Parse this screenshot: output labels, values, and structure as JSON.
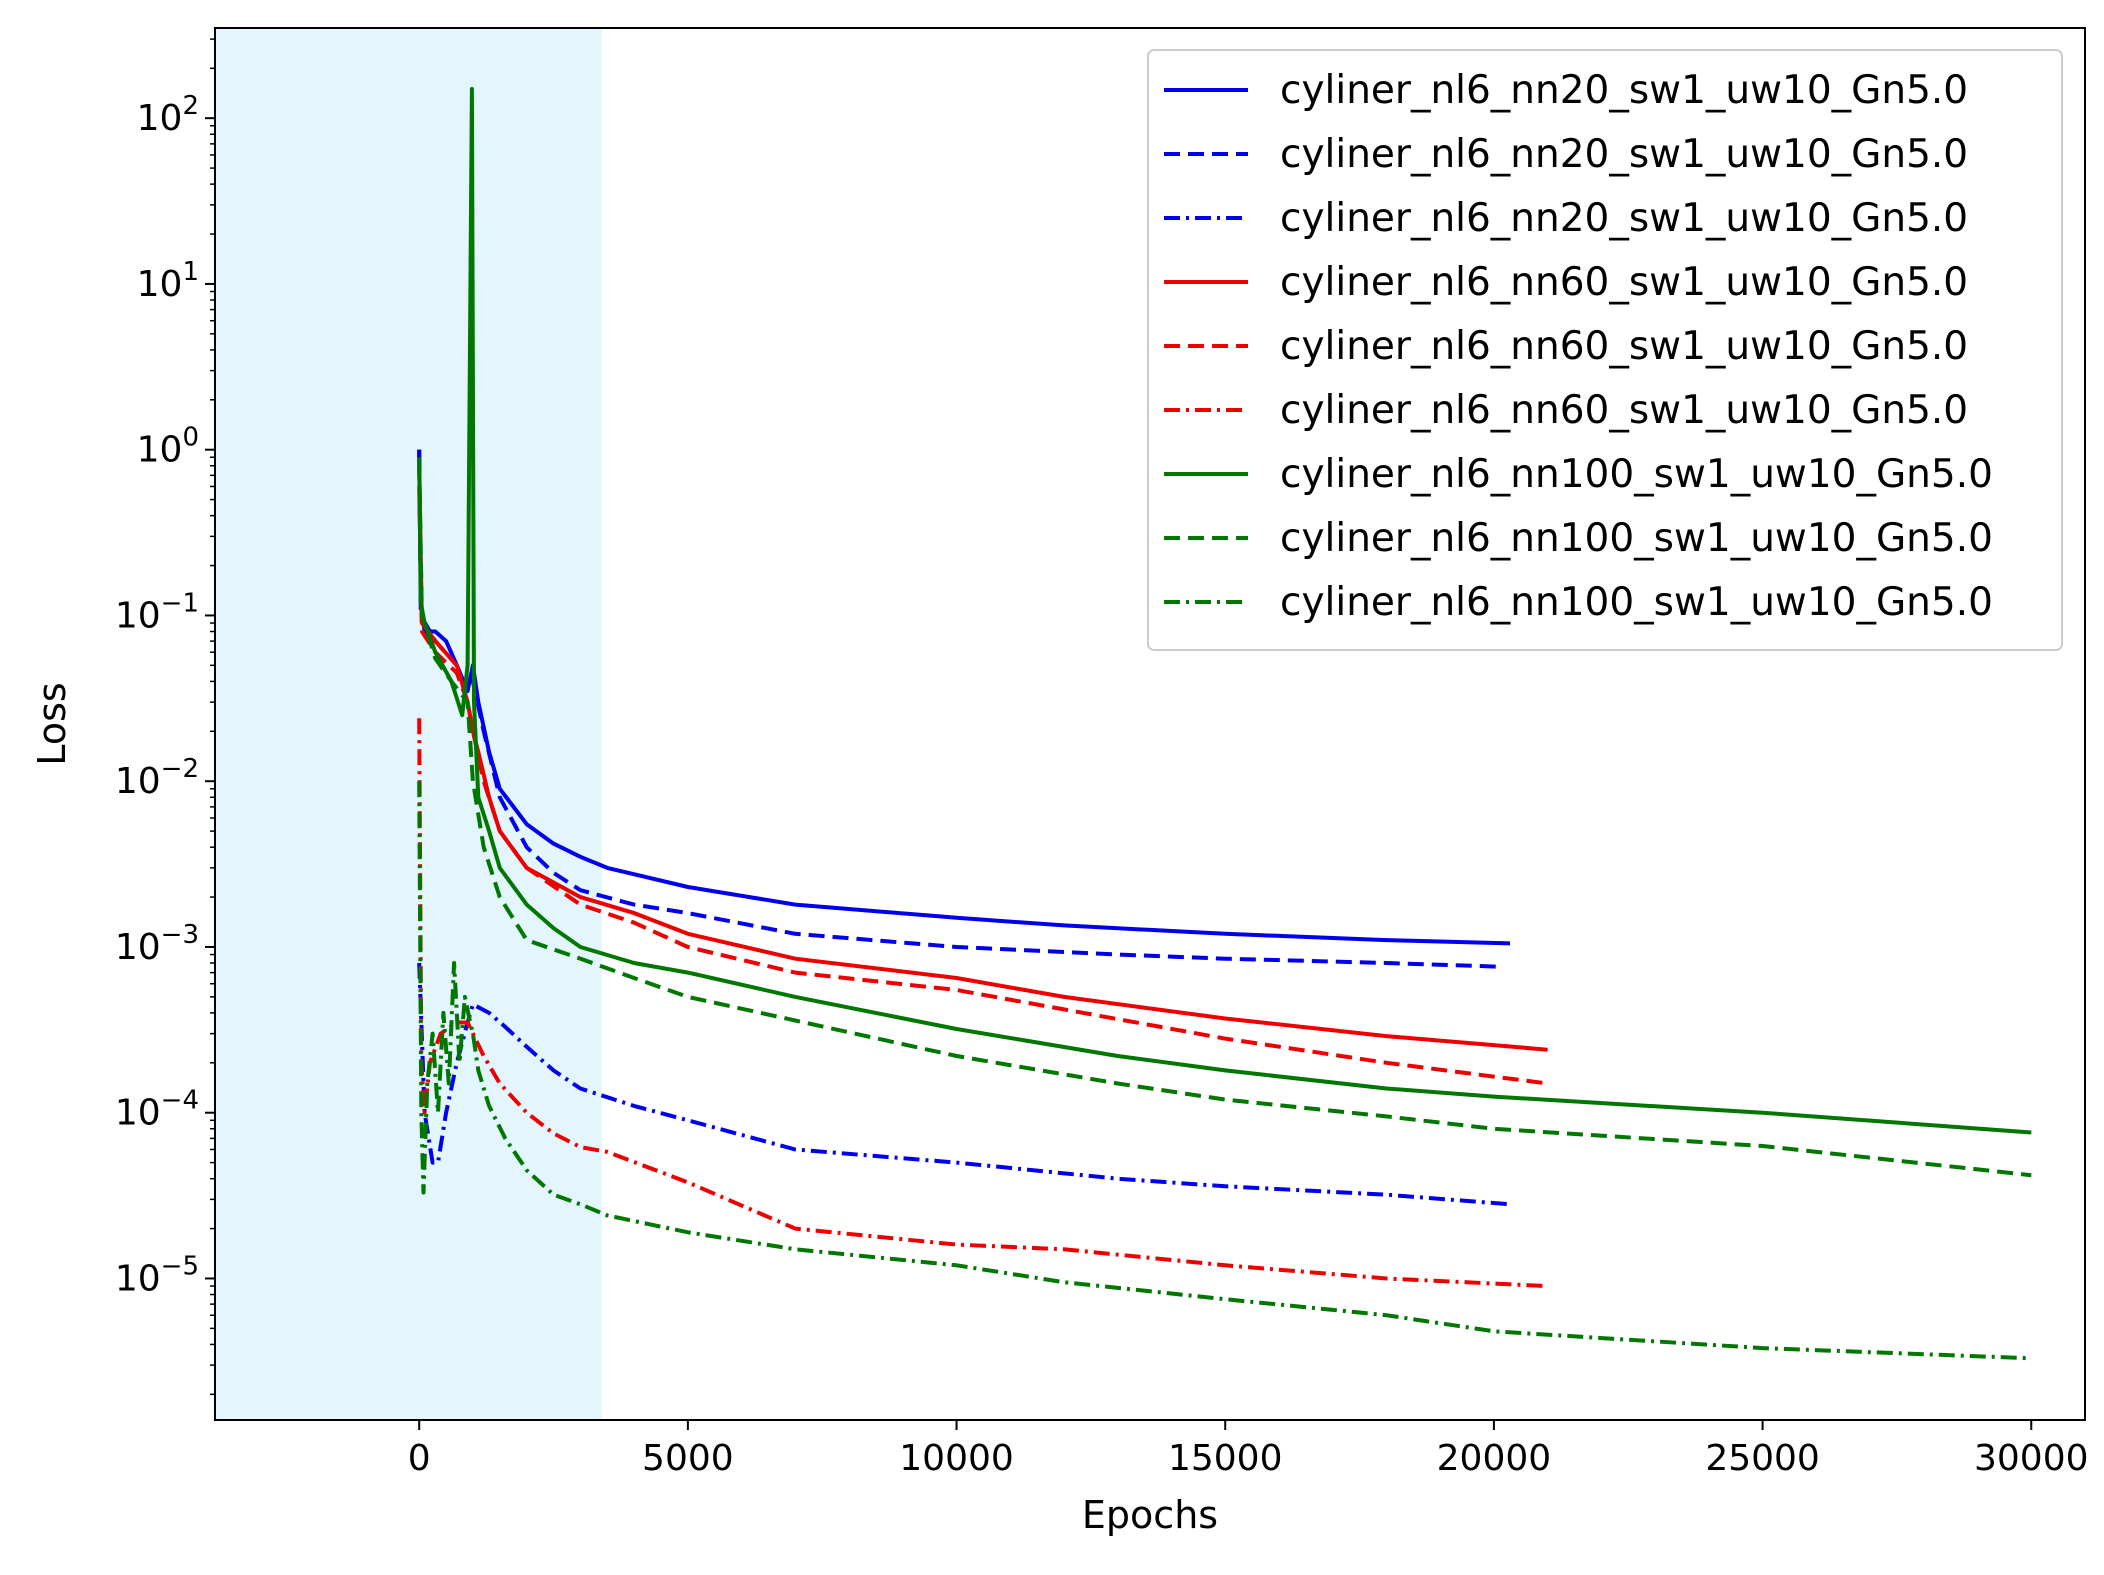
{
  "chart_data": {
    "type": "line",
    "title": "",
    "xlabel": "Epochs",
    "ylabel": "Loss",
    "xlim": [
      -3800,
      31000
    ],
    "ylim": [
      1.4e-06,
      350
    ],
    "yscale": "log",
    "xticks": [
      0,
      5000,
      10000,
      15000,
      20000,
      25000,
      30000
    ],
    "xtick_labels": [
      "0",
      "5000",
      "10000",
      "15000",
      "20000",
      "25000",
      "30000"
    ],
    "ytick_labels": [
      {
        "exp": -5,
        "base": "10",
        "sup": "−5"
      },
      {
        "exp": -4,
        "base": "10",
        "sup": "−4"
      },
      {
        "exp": -3,
        "base": "10",
        "sup": "−3"
      },
      {
        "exp": -2,
        "base": "10",
        "sup": "−2"
      },
      {
        "exp": -1,
        "base": "10",
        "sup": "−1"
      },
      {
        "exp": 0,
        "base": "10",
        "sup": "0"
      },
      {
        "exp": 1,
        "base": "10",
        "sup": "1"
      },
      {
        "exp": 2,
        "base": "10",
        "sup": "2"
      }
    ],
    "grid": false,
    "legend_position": "top-right",
    "shaded_region": {
      "x_start": -3800,
      "x_end": 3400,
      "color": "#e3f5fd"
    },
    "series": [
      {
        "name": "cyliner_nl6_nn20_sw1_uw10_Gn5.0",
        "color": "#0000ee",
        "style": "solid",
        "points": [
          [
            0,
            1.0
          ],
          [
            30,
            0.12
          ],
          [
            100,
            0.08
          ],
          [
            300,
            0.08
          ],
          [
            500,
            0.07
          ],
          [
            700,
            0.05
          ],
          [
            900,
            0.035
          ],
          [
            1000,
            0.05
          ],
          [
            1100,
            0.03
          ],
          [
            1300,
            0.015
          ],
          [
            1500,
            0.009
          ],
          [
            2000,
            0.0055
          ],
          [
            2500,
            0.0042
          ],
          [
            3000,
            0.0035
          ],
          [
            3500,
            0.003
          ],
          [
            5000,
            0.0023
          ],
          [
            7000,
            0.0018
          ],
          [
            10000,
            0.0015
          ],
          [
            12000,
            0.00135
          ],
          [
            15000,
            0.0012
          ],
          [
            18000,
            0.0011
          ],
          [
            20300,
            0.00105
          ]
        ]
      },
      {
        "name": "cyliner_nl6_nn20_sw1_uw10_Gn5.0",
        "color": "#0000ee",
        "style": "dashed",
        "points": [
          [
            0,
            1.0
          ],
          [
            30,
            0.1
          ],
          [
            300,
            0.07
          ],
          [
            700,
            0.05
          ],
          [
            900,
            0.035
          ],
          [
            1000,
            0.04
          ],
          [
            1200,
            0.02
          ],
          [
            1500,
            0.008
          ],
          [
            2000,
            0.004
          ],
          [
            2500,
            0.0028
          ],
          [
            3000,
            0.0022
          ],
          [
            4000,
            0.0018
          ],
          [
            5000,
            0.0016
          ],
          [
            7000,
            0.0012
          ],
          [
            10000,
            0.001
          ],
          [
            13000,
            0.0009
          ],
          [
            15000,
            0.00085
          ],
          [
            18000,
            0.0008
          ],
          [
            20100,
            0.00076
          ]
        ]
      },
      {
        "name": "cyliner_nl6_nn20_sw1_uw10_Gn5.0",
        "color": "#0000ee",
        "style": "dashdot",
        "points": [
          [
            0,
            0.0008
          ],
          [
            100,
            0.0001
          ],
          [
            250,
            5e-05
          ],
          [
            350,
            5e-05
          ],
          [
            500,
            0.0001
          ],
          [
            700,
            0.0002
          ],
          [
            900,
            0.00035
          ],
          [
            1000,
            0.00045
          ],
          [
            1300,
            0.0004
          ],
          [
            1600,
            0.00033
          ],
          [
            2000,
            0.00025
          ],
          [
            2500,
            0.00018
          ],
          [
            3000,
            0.00014
          ],
          [
            4000,
            0.00011
          ],
          [
            5000,
            9e-05
          ],
          [
            7000,
            6e-05
          ],
          [
            10000,
            5e-05
          ],
          [
            13000,
            4e-05
          ],
          [
            15000,
            3.6e-05
          ],
          [
            18000,
            3.2e-05
          ],
          [
            20300,
            2.8e-05
          ]
        ]
      },
      {
        "name": "cyliner_nl6_nn60_sw1_uw10_Gn5.0",
        "color": "#ee0000",
        "style": "solid",
        "points": [
          [
            0,
            0.8
          ],
          [
            50,
            0.09
          ],
          [
            300,
            0.07
          ],
          [
            700,
            0.05
          ],
          [
            900,
            0.03
          ],
          [
            1000,
            0.02
          ],
          [
            1100,
            0.015
          ],
          [
            1300,
            0.008
          ],
          [
            1500,
            0.005
          ],
          [
            2000,
            0.003
          ],
          [
            3000,
            0.002
          ],
          [
            4000,
            0.0016
          ],
          [
            5000,
            0.0012
          ],
          [
            7000,
            0.00085
          ],
          [
            10000,
            0.00065
          ],
          [
            12000,
            0.0005
          ],
          [
            15000,
            0.00037
          ],
          [
            18000,
            0.00029
          ],
          [
            21000,
            0.00024
          ]
        ]
      },
      {
        "name": "cyliner_nl6_nn60_sw1_uw10_Gn5.0",
        "color": "#ee0000",
        "style": "dashed",
        "points": [
          [
            0,
            0.6
          ],
          [
            50,
            0.08
          ],
          [
            300,
            0.06
          ],
          [
            700,
            0.045
          ],
          [
            900,
            0.03
          ],
          [
            1000,
            0.02
          ],
          [
            1200,
            0.01
          ],
          [
            1500,
            0.005
          ],
          [
            2000,
            0.003
          ],
          [
            3000,
            0.0018
          ],
          [
            4000,
            0.0014
          ],
          [
            5000,
            0.001
          ],
          [
            7000,
            0.0007
          ],
          [
            10000,
            0.00055
          ],
          [
            12000,
            0.00042
          ],
          [
            15000,
            0.00028
          ],
          [
            18000,
            0.0002
          ],
          [
            21000,
            0.00015
          ]
        ]
      },
      {
        "name": "cyliner_nl6_nn60_sw1_uw10_Gn5.0",
        "color": "#ee0000",
        "style": "dashdot",
        "points": [
          [
            0,
            0.024
          ],
          [
            40,
            0.0002
          ],
          [
            100,
            0.0001
          ],
          [
            200,
            0.0002
          ],
          [
            400,
            0.0003
          ],
          [
            700,
            0.00035
          ],
          [
            900,
            0.00035
          ],
          [
            1000,
            0.0003
          ],
          [
            1200,
            0.00022
          ],
          [
            1500,
            0.00015
          ],
          [
            2000,
            0.0001
          ],
          [
            2500,
            7.5e-05
          ],
          [
            3000,
            6.2e-05
          ],
          [
            3500,
            5.8e-05
          ],
          [
            5000,
            3.8e-05
          ],
          [
            7000,
            2e-05
          ],
          [
            10000,
            1.6e-05
          ],
          [
            12000,
            1.5e-05
          ],
          [
            15000,
            1.2e-05
          ],
          [
            18000,
            1e-05
          ],
          [
            21000,
            9e-06
          ]
        ]
      },
      {
        "name": "cyliner_nl6_nn100_sw1_uw10_Gn5.0",
        "color": "#007700",
        "style": "solid",
        "points": [
          [
            0,
            0.9
          ],
          [
            30,
            0.12
          ],
          [
            100,
            0.09
          ],
          [
            300,
            0.06
          ],
          [
            600,
            0.04
          ],
          [
            800,
            0.025
          ],
          [
            900,
            0.05
          ],
          [
            980,
            150
          ],
          [
            1020,
            0.03
          ],
          [
            1100,
            0.008
          ],
          [
            1300,
            0.005
          ],
          [
            1500,
            0.003
          ],
          [
            2000,
            0.0018
          ],
          [
            2500,
            0.0013
          ],
          [
            3000,
            0.001
          ],
          [
            4000,
            0.0008
          ],
          [
            5000,
            0.0007
          ],
          [
            7000,
            0.0005
          ],
          [
            10000,
            0.00032
          ],
          [
            13000,
            0.00022
          ],
          [
            15000,
            0.00018
          ],
          [
            18000,
            0.00014
          ],
          [
            20000,
            0.000125
          ],
          [
            25000,
            0.0001
          ],
          [
            30000,
            7.6e-05
          ]
        ]
      },
      {
        "name": "cyliner_nl6_nn100_sw1_uw10_Gn5.0",
        "color": "#007700",
        "style": "dashed",
        "points": [
          [
            0,
            0.8
          ],
          [
            50,
            0.1
          ],
          [
            300,
            0.055
          ],
          [
            600,
            0.04
          ],
          [
            900,
            0.03
          ],
          [
            1000,
            0.01
          ],
          [
            1200,
            0.004
          ],
          [
            1500,
            0.002
          ],
          [
            2000,
            0.0011
          ],
          [
            3000,
            0.00085
          ],
          [
            4000,
            0.00065
          ],
          [
            5000,
            0.0005
          ],
          [
            7000,
            0.00036
          ],
          [
            10000,
            0.00022
          ],
          [
            13000,
            0.00015
          ],
          [
            15000,
            0.00012
          ],
          [
            18000,
            9.5e-05
          ],
          [
            20000,
            8e-05
          ],
          [
            25000,
            6.3e-05
          ],
          [
            30000,
            4.2e-05
          ]
        ]
      },
      {
        "name": "cyliner_nl6_nn100_sw1_uw10_Gn5.0",
        "color": "#007700",
        "style": "dashdot",
        "points": [
          [
            0,
            0.01
          ],
          [
            40,
            0.0001
          ],
          [
            80,
            3.3e-05
          ],
          [
            150,
            0.00015
          ],
          [
            250,
            0.0003
          ],
          [
            350,
            0.0001
          ],
          [
            450,
            0.0004
          ],
          [
            550,
            0.00015
          ],
          [
            650,
            0.0008
          ],
          [
            750,
            0.0002
          ],
          [
            850,
            0.0005
          ],
          [
            950,
            0.00035
          ],
          [
            1000,
            0.0003
          ],
          [
            1100,
            0.00018
          ],
          [
            1300,
            0.00011
          ],
          [
            1600,
            7e-05
          ],
          [
            2000,
            4.5e-05
          ],
          [
            2500,
            3.2e-05
          ],
          [
            3000,
            2.8e-05
          ],
          [
            3500,
            2.4e-05
          ],
          [
            5000,
            1.9e-05
          ],
          [
            7000,
            1.5e-05
          ],
          [
            10000,
            1.2e-05
          ],
          [
            12000,
            9.5e-06
          ],
          [
            15000,
            7.5e-06
          ],
          [
            18000,
            6e-06
          ],
          [
            20000,
            4.8e-06
          ],
          [
            25000,
            3.8e-06
          ],
          [
            30000,
            3.3e-06
          ]
        ]
      }
    ]
  }
}
